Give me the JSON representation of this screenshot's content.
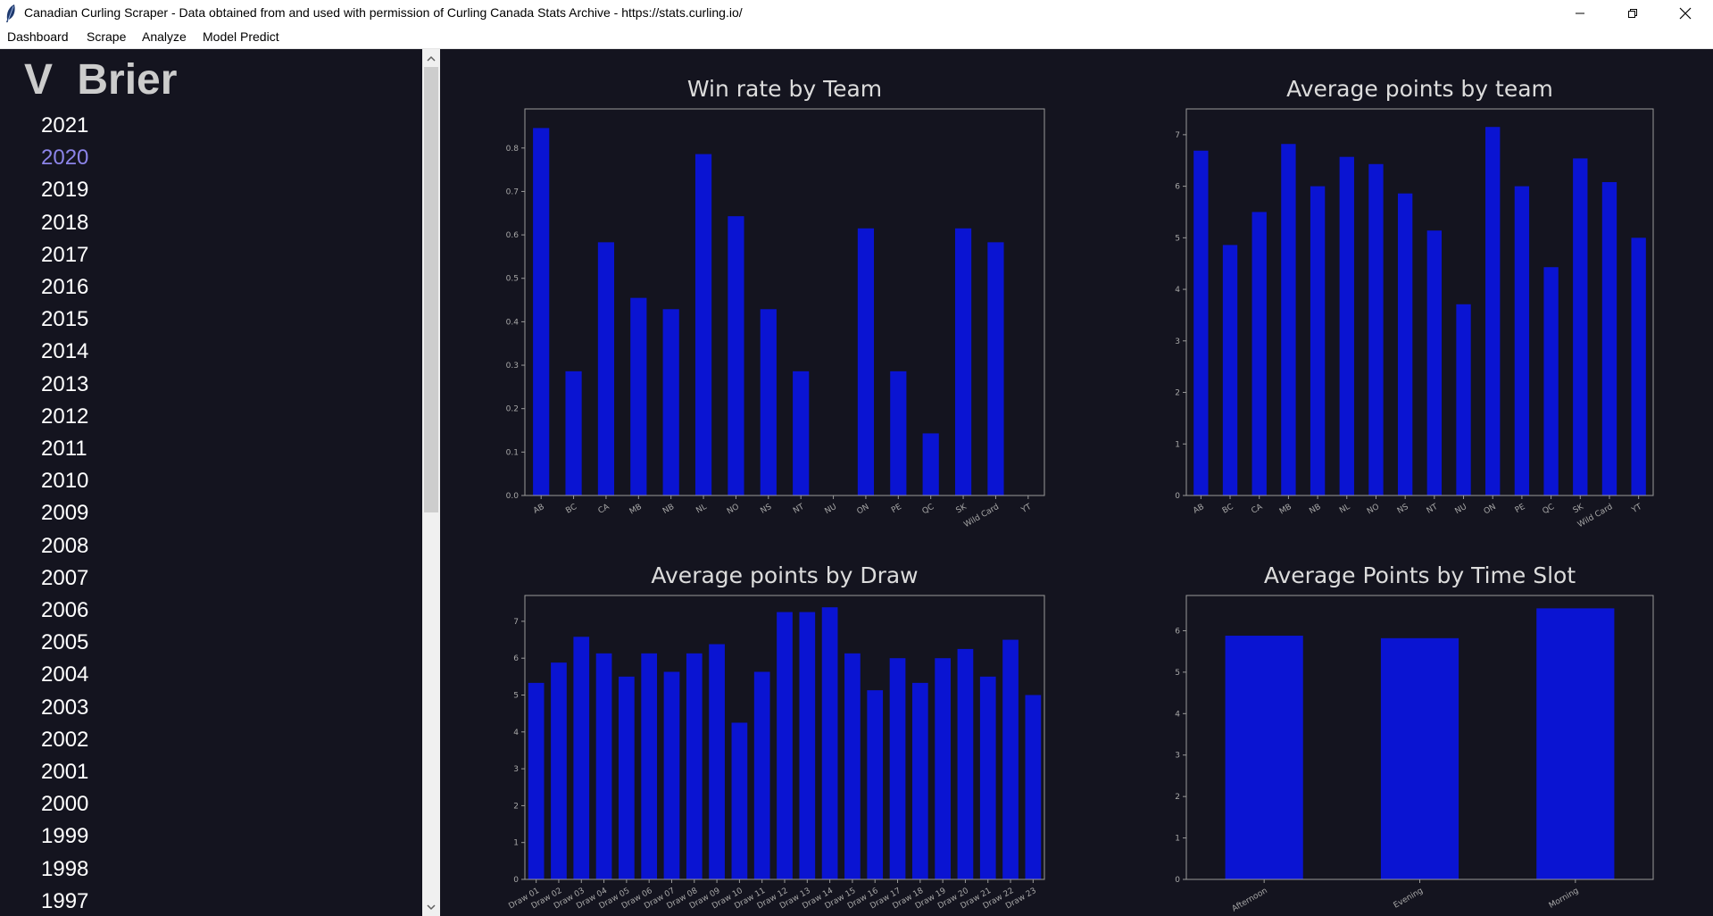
{
  "window": {
    "title": "Canadian Curling Scraper - Data obtained from and used with permission of Curling Canada Stats Archive - https://stats.curling.io/",
    "icon": "feather-icon",
    "controls": [
      "minimize-icon",
      "restore-icon",
      "close-icon"
    ]
  },
  "menu": [
    {
      "label": "Dashboard"
    },
    {
      "label": "Scrape"
    },
    {
      "label": "Analyze"
    },
    {
      "label": "Model Predict"
    }
  ],
  "sidebar": {
    "expand_glyph": "V",
    "header": "Brier",
    "selected": "2020",
    "selected_color": "#8c84e8",
    "years": [
      "2021",
      "2020",
      "2019",
      "2018",
      "2017",
      "2016",
      "2015",
      "2014",
      "2013",
      "2012",
      "2011",
      "2010",
      "2009",
      "2008",
      "2007",
      "2006",
      "2005",
      "2004",
      "2003",
      "2002",
      "2001",
      "2000",
      "1999",
      "1998",
      "1997"
    ]
  },
  "colors": {
    "background": "#14141f",
    "bar": "#0a14d2",
    "axis": "#9a9a9a",
    "title_text": "#dcdcdc"
  },
  "chart_data": [
    {
      "type": "bar",
      "title": "Win rate by Team",
      "categories": [
        "AB",
        "BC",
        "CA",
        "MB",
        "NB",
        "NL",
        "NO",
        "NS",
        "NT",
        "NU",
        "ON",
        "PE",
        "QC",
        "SK",
        "Wild Card",
        "YT"
      ],
      "values": [
        0.846,
        0.286,
        0.583,
        0.455,
        0.429,
        0.786,
        0.643,
        0.429,
        0.286,
        0.0,
        0.615,
        0.286,
        0.143,
        0.615,
        0.583,
        0.0
      ],
      "yticks": [
        "0.0",
        "0.1",
        "0.2",
        "0.3",
        "0.4",
        "0.5",
        "0.6",
        "0.7",
        "0.8"
      ],
      "ylim": [
        0,
        0.89
      ],
      "xlabel": "",
      "ylabel": ""
    },
    {
      "type": "bar",
      "title": "Average points by team",
      "categories": [
        "AB",
        "BC",
        "CA",
        "MB",
        "NB",
        "NL",
        "NO",
        "NS",
        "NT",
        "NU",
        "ON",
        "PE",
        "QC",
        "SK",
        "Wild Card",
        "YT"
      ],
      "values": [
        6.69,
        4.86,
        5.5,
        6.82,
        6.0,
        6.57,
        6.43,
        5.86,
        5.14,
        3.71,
        7.15,
        6.0,
        4.43,
        6.54,
        6.08,
        5.0
      ],
      "yticks": [
        "0",
        "1",
        "2",
        "3",
        "4",
        "5",
        "6",
        "7"
      ],
      "ylim": [
        0,
        7.5
      ],
      "xlabel": "",
      "ylabel": ""
    },
    {
      "type": "bar",
      "title": "Average points by Draw",
      "categories": [
        "Draw 01",
        "Draw 02",
        "Draw 03",
        "Draw 04",
        "Draw 05",
        "Draw 06",
        "Draw 07",
        "Draw 08",
        "Draw 09",
        "Draw 10",
        "Draw 11",
        "Draw 12",
        "Draw 13",
        "Draw 14",
        "Draw 15",
        "Draw 16",
        "Draw 17",
        "Draw 18",
        "Draw 19",
        "Draw 20",
        "Draw 21",
        "Draw 22",
        "Draw 23"
      ],
      "values": [
        5.33,
        5.88,
        6.58,
        6.13,
        5.5,
        6.13,
        5.63,
        6.13,
        6.38,
        4.25,
        5.63,
        7.25,
        7.25,
        7.38,
        6.13,
        5.13,
        6.0,
        5.33,
        6.0,
        6.25,
        5.5,
        6.5,
        5.0
      ],
      "yticks": [
        "0",
        "1",
        "2",
        "3",
        "4",
        "5",
        "6",
        "7"
      ],
      "ylim": [
        0,
        7.7
      ],
      "xlabel": "",
      "ylabel": ""
    },
    {
      "type": "bar",
      "title": "Average Points by Time Slot",
      "categories": [
        "Afternoon",
        "Evening",
        "Morning"
      ],
      "values": [
        5.88,
        5.82,
        6.54
      ],
      "yticks": [
        "0",
        "1",
        "2",
        "3",
        "4",
        "5",
        "6"
      ],
      "ylim": [
        0,
        6.85
      ],
      "xlabel": "",
      "ylabel": ""
    }
  ]
}
